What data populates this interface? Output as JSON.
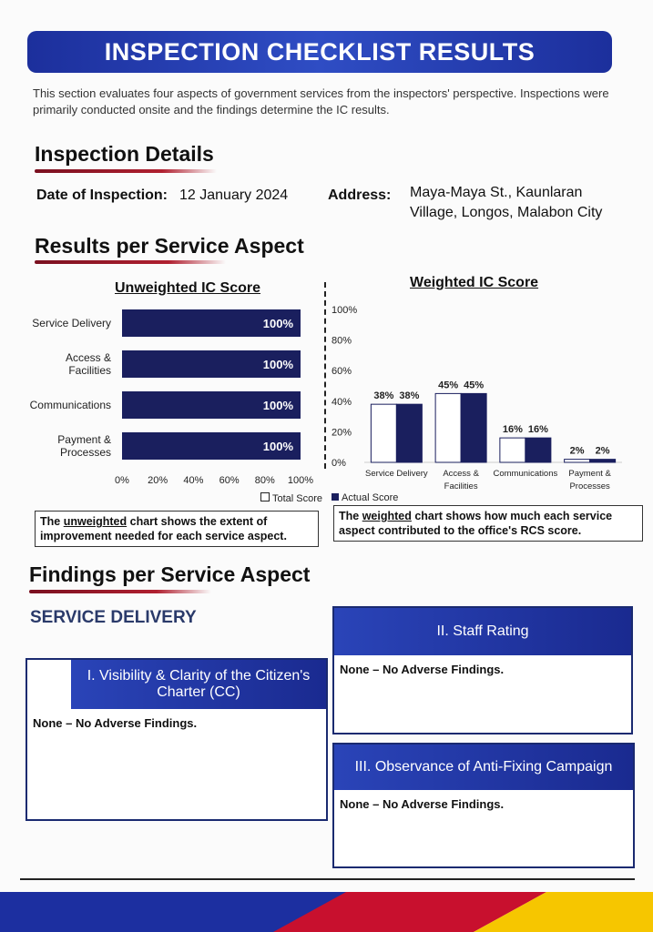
{
  "banner": {
    "title": "INSPECTION CHECKLIST RESULTS"
  },
  "intro": "This section evaluates four aspects of government services from the inspectors' perspective. Inspections were primarily conducted onsite and the findings determine the IC results.",
  "inspection_details": {
    "heading": "Inspection Details",
    "date_label": "Date of Inspection:",
    "date_value": "12 January 2024",
    "address_label": "Address:",
    "address_line1": "Maya-Maya St., Kaunlaran",
    "address_line2": "Village, Longos, Malabon City"
  },
  "results": {
    "heading": "Results per Service Aspect"
  },
  "chart_data": [
    {
      "type": "bar",
      "orientation": "horizontal",
      "title": "Unweighted IC Score",
      "categories": [
        "Service Delivery",
        "Access & Facilities",
        "Communications",
        "Payment & Processes"
      ],
      "values": [
        100,
        100,
        100,
        100
      ],
      "data_labels": [
        "100%",
        "100%",
        "100%",
        "100%"
      ],
      "xlim": [
        0,
        100
      ],
      "x_ticks": [
        "0%",
        "20%",
        "40%",
        "60%",
        "80%",
        "100%"
      ],
      "color": "#1a1f5e"
    },
    {
      "type": "bar",
      "title": "Weighted IC Score",
      "categories": [
        "Service Delivery",
        "Access & Facilities",
        "Communications",
        "Payment & Processes"
      ],
      "series": [
        {
          "name": "Total Score",
          "values": [
            38,
            45,
            16,
            2
          ],
          "color": "#ffffff"
        },
        {
          "name": "Actual Score",
          "values": [
            38,
            45,
            16,
            2
          ],
          "color": "#1a1f5e"
        }
      ],
      "ylim": [
        0,
        100
      ],
      "y_ticks": [
        "0%",
        "20%",
        "40%",
        "60%",
        "80%",
        "100%"
      ],
      "legend": "bottom"
    }
  ],
  "legend": {
    "total": "Total Score",
    "actual": "Actual Score"
  },
  "notes": {
    "unweighted_pre": "The ",
    "unweighted_u": "unweighted",
    "unweighted_post": " chart shows the extent of improvement needed for each service aspect.",
    "weighted_pre": "The ",
    "weighted_u": "weighted",
    "weighted_post": " chart shows how much each service aspect contributed to the office's RCS score."
  },
  "findings": {
    "heading": "Findings per Service Aspect",
    "subheading": "SERVICE DELIVERY",
    "boxes": [
      {
        "title": "I. Visibility & Clarity of the Citizen's Charter (CC)",
        "body": "None – No Adverse Findings."
      },
      {
        "title": "II. Staff Rating",
        "body": "None – No Adverse Findings."
      },
      {
        "title": "III. Observance of Anti-Fixing Campaign",
        "body": "None – No Adverse Findings."
      }
    ]
  }
}
